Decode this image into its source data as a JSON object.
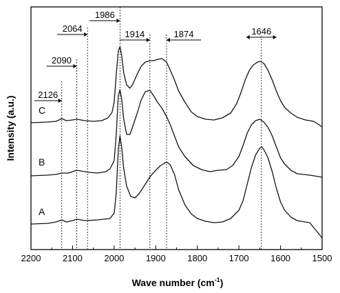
{
  "chart_data": {
    "type": "line",
    "xlabel": "Wave number (cm",
    "xlabel_sup": "-1",
    "xlabel_end": ")",
    "ylabel": "Intensity (a.u.)",
    "xlim": [
      2200,
      1500
    ],
    "xtick_values": [
      2200,
      2100,
      2000,
      1900,
      1800,
      1700,
      1600,
      1500
    ],
    "xtick_labels": [
      "2200",
      "2100",
      "2000",
      "1900",
      "1800",
      "1700",
      "1600",
      "1500"
    ],
    "y_axis_ticks": false,
    "series": [
      {
        "name": "A",
        "baseline": 325,
        "points": [
          [
            2200,
            0
          ],
          [
            2160,
            1
          ],
          [
            2140,
            3
          ],
          [
            2126,
            6
          ],
          [
            2115,
            3
          ],
          [
            2100,
            5
          ],
          [
            2090,
            7
          ],
          [
            2070,
            5
          ],
          [
            2040,
            6
          ],
          [
            2010,
            8
          ],
          [
            2000,
            16
          ],
          [
            1995,
            45
          ],
          [
            1990,
            108
          ],
          [
            1986,
            128
          ],
          [
            1982,
            112
          ],
          [
            1977,
            80
          ],
          [
            1970,
            55
          ],
          [
            1960,
            40
          ],
          [
            1950,
            38
          ],
          [
            1940,
            44
          ],
          [
            1925,
            58
          ],
          [
            1912,
            70
          ],
          [
            1900,
            78
          ],
          [
            1890,
            84
          ],
          [
            1880,
            88
          ],
          [
            1874,
            90
          ],
          [
            1865,
            86
          ],
          [
            1855,
            72
          ],
          [
            1845,
            50
          ],
          [
            1830,
            28
          ],
          [
            1815,
            15
          ],
          [
            1800,
            8
          ],
          [
            1780,
            4
          ],
          [
            1760,
            2
          ],
          [
            1740,
            3
          ],
          [
            1720,
            8
          ],
          [
            1700,
            20
          ],
          [
            1690,
            34
          ],
          [
            1680,
            58
          ],
          [
            1670,
            82
          ],
          [
            1660,
            100
          ],
          [
            1650,
            110
          ],
          [
            1645,
            112
          ],
          [
            1640,
            108
          ],
          [
            1630,
            96
          ],
          [
            1620,
            76
          ],
          [
            1610,
            52
          ],
          [
            1600,
            32
          ],
          [
            1590,
            20
          ],
          [
            1575,
            10
          ],
          [
            1560,
            5
          ],
          [
            1530,
            2
          ],
          [
            1500,
            -20
          ]
        ]
      },
      {
        "name": "B",
        "baseline": 255,
        "points": [
          [
            2200,
            0
          ],
          [
            2160,
            1
          ],
          [
            2140,
            2
          ],
          [
            2126,
            4
          ],
          [
            2110,
            4
          ],
          [
            2090,
            8
          ],
          [
            2080,
            7
          ],
          [
            2060,
            5
          ],
          [
            2040,
            4
          ],
          [
            2020,
            6
          ],
          [
            2010,
            10
          ],
          [
            2000,
            22
          ],
          [
            1995,
            60
          ],
          [
            1990,
            116
          ],
          [
            1986,
            125
          ],
          [
            1982,
            112
          ],
          [
            1977,
            82
          ],
          [
            1970,
            60
          ],
          [
            1962,
            60
          ],
          [
            1955,
            72
          ],
          [
            1945,
            90
          ],
          [
            1935,
            110
          ],
          [
            1925,
            122
          ],
          [
            1914,
            124
          ],
          [
            1905,
            116
          ],
          [
            1895,
            106
          ],
          [
            1885,
            98
          ],
          [
            1874,
            86
          ],
          [
            1865,
            74
          ],
          [
            1855,
            58
          ],
          [
            1845,
            42
          ],
          [
            1830,
            28
          ],
          [
            1810,
            15
          ],
          [
            1790,
            9
          ],
          [
            1770,
            6
          ],
          [
            1750,
            8
          ],
          [
            1730,
            9
          ],
          [
            1715,
            15
          ],
          [
            1700,
            28
          ],
          [
            1690,
            44
          ],
          [
            1680,
            62
          ],
          [
            1670,
            74
          ],
          [
            1660,
            80
          ],
          [
            1650,
            82
          ],
          [
            1640,
            78
          ],
          [
            1630,
            70
          ],
          [
            1620,
            58
          ],
          [
            1610,
            42
          ],
          [
            1600,
            26
          ],
          [
            1590,
            17
          ],
          [
            1575,
            8
          ],
          [
            1560,
            3
          ],
          [
            1530,
            1
          ],
          [
            1500,
            -2
          ]
        ]
      },
      {
        "name": "C",
        "baseline": 178,
        "points": [
          [
            2200,
            0
          ],
          [
            2160,
            1
          ],
          [
            2140,
            2
          ],
          [
            2126,
            6
          ],
          [
            2115,
            3
          ],
          [
            2100,
            4
          ],
          [
            2090,
            5
          ],
          [
            2070,
            3
          ],
          [
            2050,
            2
          ],
          [
            2030,
            3
          ],
          [
            2015,
            7
          ],
          [
            2005,
            15
          ],
          [
            2000,
            30
          ],
          [
            1995,
            70
          ],
          [
            1990,
            104
          ],
          [
            1986,
            110
          ],
          [
            1982,
            98
          ],
          [
            1977,
            72
          ],
          [
            1970,
            55
          ],
          [
            1962,
            50
          ],
          [
            1955,
            56
          ],
          [
            1945,
            70
          ],
          [
            1935,
            82
          ],
          [
            1925,
            88
          ],
          [
            1914,
            90
          ],
          [
            1905,
            90
          ],
          [
            1895,
            92
          ],
          [
            1885,
            93
          ],
          [
            1874,
            88
          ],
          [
            1865,
            76
          ],
          [
            1855,
            62
          ],
          [
            1845,
            46
          ],
          [
            1830,
            30
          ],
          [
            1815,
            16
          ],
          [
            1800,
            9
          ],
          [
            1780,
            5
          ],
          [
            1760,
            4
          ],
          [
            1740,
            7
          ],
          [
            1720,
            14
          ],
          [
            1705,
            28
          ],
          [
            1695,
            44
          ],
          [
            1685,
            62
          ],
          [
            1675,
            76
          ],
          [
            1665,
            84
          ],
          [
            1655,
            88
          ],
          [
            1648,
            89
          ],
          [
            1640,
            86
          ],
          [
            1630,
            76
          ],
          [
            1620,
            62
          ],
          [
            1610,
            46
          ],
          [
            1600,
            32
          ],
          [
            1590,
            22
          ],
          [
            1575,
            14
          ],
          [
            1560,
            8
          ],
          [
            1540,
            4
          ],
          [
            1520,
            2
          ],
          [
            1500,
            -6
          ]
        ]
      }
    ],
    "peak_lines": [
      {
        "label": "2126",
        "x": 2126,
        "arrow": "left"
      },
      {
        "label": "2090",
        "x": 2090,
        "arrow": "left"
      },
      {
        "label": "2064",
        "x": 2064,
        "arrow": "left"
      },
      {
        "label": "1986",
        "x": 1986,
        "arrow": "left"
      },
      {
        "label": "1914",
        "x": 1914,
        "arrow": "left"
      },
      {
        "label": "1874",
        "x": 1874,
        "arrow": "right"
      },
      {
        "label": "1646",
        "x": 1646,
        "arrow": "both"
      }
    ]
  }
}
